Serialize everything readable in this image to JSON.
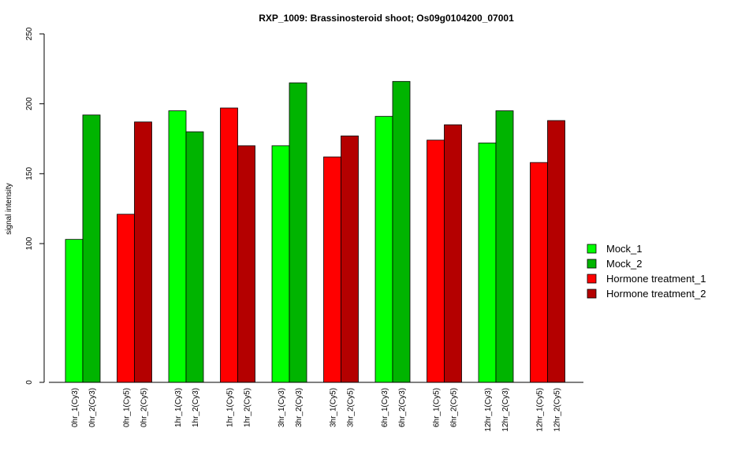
{
  "chart_data": {
    "type": "bar",
    "title": "RXP_1009: Brassinosteroid shoot; Os09g0104200_07001",
    "xlabel": "",
    "ylabel": "signal intensity",
    "y_ticks": [
      0,
      100,
      150,
      200,
      250
    ],
    "y_scale": "piecewise (0–100 compressed, 100–250 linear)",
    "ylim": [
      0,
      250
    ],
    "grid": false,
    "legend_position": "right",
    "colors": {
      "Mock_1": "#00ff00",
      "Mock_2": "#00b400",
      "Hormone treatment_1": "#ff0000",
      "Hormone treatment_2": "#b40000"
    },
    "legend": [
      "Mock_1",
      "Mock_2",
      "Hormone treatment_1",
      "Hormone treatment_2"
    ],
    "bars": [
      {
        "label": "0hr_1(Cy3)",
        "value": 103,
        "series": "Mock_1"
      },
      {
        "label": "0hr_2(Cy3)",
        "value": 192,
        "series": "Mock_2"
      },
      {
        "label": "0hr_1(Cy5)",
        "value": 121,
        "series": "Hormone treatment_1"
      },
      {
        "label": "0hr_2(Cy5)",
        "value": 187,
        "series": "Hormone treatment_2"
      },
      {
        "label": "1hr_1(Cy3)",
        "value": 195,
        "series": "Mock_1"
      },
      {
        "label": "1hr_2(Cy3)",
        "value": 180,
        "series": "Mock_2"
      },
      {
        "label": "1hr_1(Cy5)",
        "value": 197,
        "series": "Hormone treatment_1"
      },
      {
        "label": "1hr_2(Cy5)",
        "value": 170,
        "series": "Hormone treatment_2"
      },
      {
        "label": "3hr_1(Cy3)",
        "value": 170,
        "series": "Mock_1"
      },
      {
        "label": "3hr_2(Cy3)",
        "value": 215,
        "series": "Mock_2"
      },
      {
        "label": "3hr_1(Cy5)",
        "value": 162,
        "series": "Hormone treatment_1"
      },
      {
        "label": "3hr_2(Cy5)",
        "value": 177,
        "series": "Hormone treatment_2"
      },
      {
        "label": "6hr_1(Cy3)",
        "value": 191,
        "series": "Mock_1"
      },
      {
        "label": "6hr_2(Cy3)",
        "value": 216,
        "series": "Mock_2"
      },
      {
        "label": "6hr_1(Cy5)",
        "value": 174,
        "series": "Hormone treatment_1"
      },
      {
        "label": "6hr_2(Cy5)",
        "value": 185,
        "series": "Hormone treatment_2"
      },
      {
        "label": "12hr_1(Cy3)",
        "value": 172,
        "series": "Mock_1"
      },
      {
        "label": "12hr_2(Cy3)",
        "value": 195,
        "series": "Mock_2"
      },
      {
        "label": "12hr_1(Cy5)",
        "value": 158,
        "series": "Hormone treatment_1"
      },
      {
        "label": "12hr_2(Cy5)",
        "value": 188,
        "series": "Hormone treatment_2"
      }
    ]
  }
}
